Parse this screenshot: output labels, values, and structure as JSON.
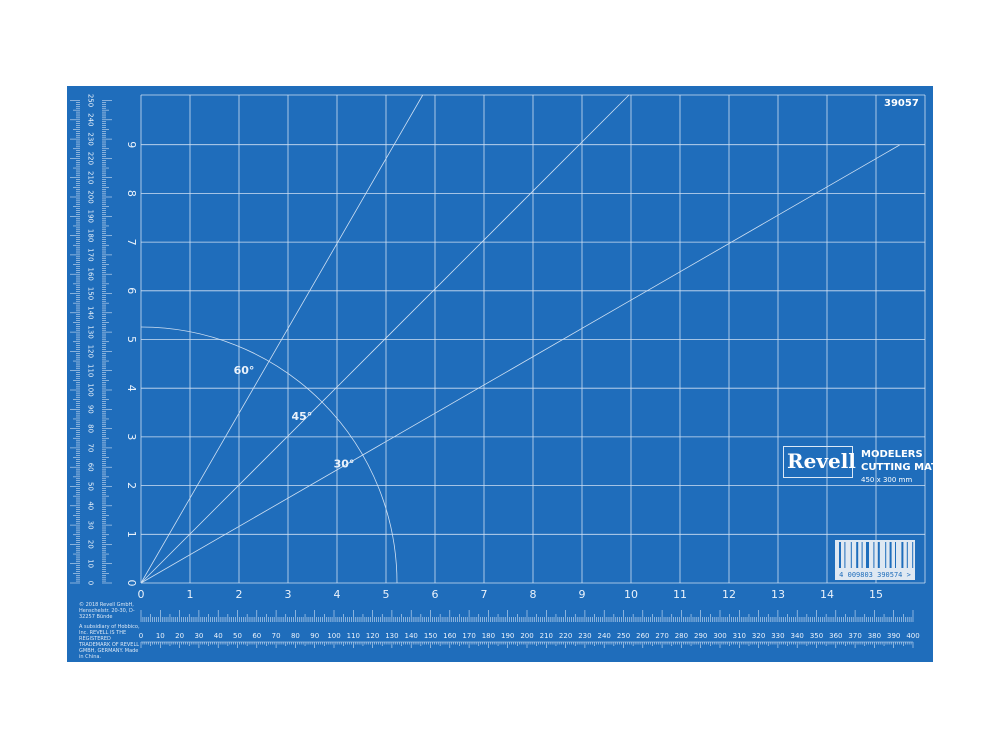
{
  "product_code": "39057",
  "brand": "Revell",
  "product_name_line1": "MODELERS",
  "product_name_line2": "CUTTING MAT",
  "dimensions": "450 x 300 mm",
  "barcode": "4 009803 390574 >",
  "copyright": "© 2018 Revell GmbH, Henschelstr. 20-30, D-32257 Bünde",
  "legal": "A subsidiary of Hobbico, Inc. REVELL IS THE REGISTERED TRADEMARK OF REVELL GMBH, GERMANY. Made in China.",
  "grid": {
    "x_labels": [
      0,
      1,
      2,
      3,
      4,
      5,
      6,
      7,
      8,
      9,
      10,
      11,
      12,
      13,
      14,
      15
    ],
    "y_labels": [
      0,
      1,
      2,
      3,
      4,
      5,
      6,
      7,
      8,
      9
    ]
  },
  "rulers": {
    "bottom_mm_max": 400,
    "left_mm_max": 250,
    "label_step": 10
  },
  "angles": [
    {
      "label": "60°",
      "deg": 60
    },
    {
      "label": "45°",
      "deg": 45
    },
    {
      "label": "30°",
      "deg": 30
    }
  ],
  "colors": {
    "mat": "#1f6dbb",
    "lines": "#cfe0f3"
  }
}
